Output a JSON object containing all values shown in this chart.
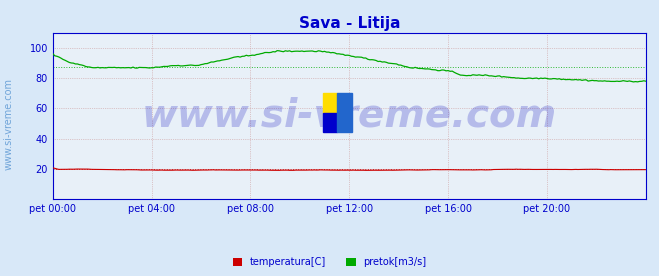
{
  "title": "Sava - Litija",
  "title_color": "#0000cc",
  "title_fontsize": 11,
  "bg_color": "#d8e8f8",
  "plot_bg_color": "#e8f0f8",
  "axis_color": "#0000cc",
  "ylabel_left": "",
  "xlabel": "",
  "xlim": [
    0,
    288
  ],
  "ylim": [
    0,
    110
  ],
  "yticks": [
    20,
    40,
    60,
    80,
    100
  ],
  "xtick_labels": [
    "pet 00:00",
    "pet 04:00",
    "pet 08:00",
    "pet 12:00",
    "pet 16:00",
    "pet 20:00"
  ],
  "xtick_positions": [
    0,
    48,
    96,
    144,
    192,
    240
  ],
  "grid_color_major": "#cc9999",
  "grid_color_minor": "#cccccc",
  "watermark": "www.si-vreme.com",
  "watermark_color": "#0000bb",
  "watermark_alpha": 0.25,
  "watermark_fontsize": 28,
  "side_label": "www.si-vreme.com",
  "side_label_color": "#4488cc",
  "side_label_fontsize": 7,
  "temp_color": "#cc0000",
  "temp_avg_color": "#cc0000",
  "pretok_color": "#00aa00",
  "pretok_avg_color": "#00aa00",
  "legend_labels": [
    "temperatura[C]",
    "pretok[m3/s]"
  ],
  "legend_colors": [
    "#cc0000",
    "#00aa00"
  ],
  "temp_value": 19.5,
  "pretok_avg_value": 87.5,
  "pretok_peak_value": 98,
  "pretok_peak_start": 90,
  "pretok_peak_end": 145
}
